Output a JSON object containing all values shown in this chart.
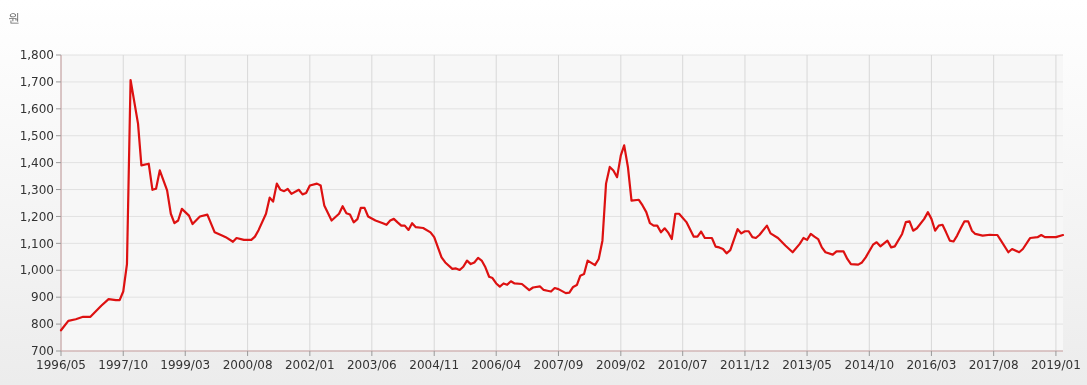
{
  "chart_data": {
    "type": "line",
    "ylabel": "원",
    "x": [
      "1996-05",
      "1996-07",
      "1996-09",
      "1996-11",
      "1997-01",
      "1997-04",
      "1997-06",
      "1997-08",
      "1997-09",
      "1997-10",
      "1997-11",
      "1997-12",
      "1998-02",
      "1998-03",
      "1998-05",
      "1998-06",
      "1998-07",
      "1998-08",
      "1998-10",
      "1998-11",
      "1998-12",
      "1999-01",
      "1999-02",
      "1999-04",
      "1999-05",
      "1999-07",
      "1999-09",
      "1999-11",
      "2000-01",
      "2000-02",
      "2000-04",
      "2000-05",
      "2000-07",
      "2000-09",
      "2000-10",
      "2000-11",
      "2001-01",
      "2001-02",
      "2001-03",
      "2001-04",
      "2001-05",
      "2001-06",
      "2001-07",
      "2001-08",
      "2001-10",
      "2001-11",
      "2001-12",
      "2002-01",
      "2002-03",
      "2002-04",
      "2002-05",
      "2002-07",
      "2002-09",
      "2002-10",
      "2002-11",
      "2002-12",
      "2003-01",
      "2003-02",
      "2003-03",
      "2003-04",
      "2003-05",
      "2003-07",
      "2003-09",
      "2003-10",
      "2003-11",
      "2003-12",
      "2004-01",
      "2004-02",
      "2004-03",
      "2004-04",
      "2004-05",
      "2004-06",
      "2004-08",
      "2004-10",
      "2004-11",
      "2005-01",
      "2005-02",
      "2005-04",
      "2005-05",
      "2005-06",
      "2005-07",
      "2005-08",
      "2005-09",
      "2005-10",
      "2005-11",
      "2005-12",
      "2006-01",
      "2006-02",
      "2006-03",
      "2006-04",
      "2006-05",
      "2006-06",
      "2006-07",
      "2006-08",
      "2006-09",
      "2006-11",
      "2007-01",
      "2007-02",
      "2007-04",
      "2007-05",
      "2007-06",
      "2007-07",
      "2007-08",
      "2007-09",
      "2007-11",
      "2007-12",
      "2008-01",
      "2008-02",
      "2008-03",
      "2008-04",
      "2008-05",
      "2008-07",
      "2008-08",
      "2008-09",
      "2008-10",
      "2008-11",
      "2008-12",
      "2009-01",
      "2009-02",
      "2009-03",
      "2009-04",
      "2009-05",
      "2009-07",
      "2009-08",
      "2009-09",
      "2009-10",
      "2009-11",
      "2009-12",
      "2010-01",
      "2010-02",
      "2010-03",
      "2010-04",
      "2010-05",
      "2010-06",
      "2010-08",
      "2010-10",
      "2010-11",
      "2010-12",
      "2011-01",
      "2011-03",
      "2011-04",
      "2011-05",
      "2011-06",
      "2011-07",
      "2011-08",
      "2011-10",
      "2011-11",
      "2011-12",
      "2012-01",
      "2012-02",
      "2012-03",
      "2012-04",
      "2012-06",
      "2012-07",
      "2012-09",
      "2012-11",
      "2013-01",
      "2013-03",
      "2013-04",
      "2013-05",
      "2013-06",
      "2013-07",
      "2013-08",
      "2013-09",
      "2013-10",
      "2013-12",
      "2014-01",
      "2014-03",
      "2014-04",
      "2014-05",
      "2014-07",
      "2014-08",
      "2014-09",
      "2014-11",
      "2014-12",
      "2015-01",
      "2015-03",
      "2015-04",
      "2015-05",
      "2015-07",
      "2015-08",
      "2015-09",
      "2015-10",
      "2015-11",
      "2016-01",
      "2016-02",
      "2016-03",
      "2016-04",
      "2016-05",
      "2016-06",
      "2016-07",
      "2016-08",
      "2016-09",
      "2016-10",
      "2016-11",
      "2016-12",
      "2017-01",
      "2017-02",
      "2017-03",
      "2017-05",
      "2017-07",
      "2017-08",
      "2017-09",
      "2017-10",
      "2017-12",
      "2018-01",
      "2018-03",
      "2018-04",
      "2018-06",
      "2018-08",
      "2018-09",
      "2018-10",
      "2019-01",
      "2019-03"
    ],
    "series": [
      {
        "color": "#dd1111",
        "values": [
          777,
          812,
          818,
          827,
          827,
          868,
          893,
          889,
          889,
          921,
          1023,
          1707,
          1545,
          1390,
          1396,
          1299,
          1303,
          1371,
          1297,
          1210,
          1175,
          1185,
          1228,
          1203,
          1172,
          1200,
          1207,
          1141,
          1129,
          1123,
          1106,
          1120,
          1113,
          1113,
          1125,
          1150,
          1210,
          1270,
          1255,
          1322,
          1299,
          1294,
          1302,
          1284,
          1299,
          1282,
          1287,
          1315,
          1322,
          1315,
          1241,
          1185,
          1210,
          1238,
          1212,
          1207,
          1178,
          1190,
          1232,
          1232,
          1200,
          1185,
          1175,
          1169,
          1185,
          1191,
          1178,
          1166,
          1166,
          1150,
          1175,
          1160,
          1157,
          1141,
          1123,
          1048,
          1029,
          1005,
          1007,
          1001,
          1013,
          1036,
          1023,
          1029,
          1046,
          1036,
          1011,
          976,
          971,
          951,
          939,
          951,
          946,
          959,
          951,
          949,
          926,
          936,
          940,
          927,
          924,
          921,
          934,
          930,
          915,
          917,
          938,
          945,
          980,
          986,
          1036,
          1019,
          1042,
          1110,
          1322,
          1384,
          1371,
          1346,
          1427,
          1464,
          1384,
          1259,
          1262,
          1241,
          1216,
          1175,
          1166,
          1166,
          1141,
          1156,
          1141,
          1116,
          1210,
          1210,
          1179,
          1125,
          1125,
          1144,
          1120,
          1120,
          1088,
          1085,
          1079,
          1063,
          1075,
          1153,
          1137,
          1145,
          1145,
          1123,
          1120,
          1132,
          1166,
          1137,
          1120,
          1092,
          1067,
          1098,
          1120,
          1113,
          1135,
          1125,
          1116,
          1085,
          1067,
          1058,
          1070,
          1070,
          1042,
          1023,
          1021,
          1029,
          1048,
          1095,
          1104,
          1089,
          1110,
          1085,
          1089,
          1135,
          1179,
          1182,
          1147,
          1156,
          1191,
          1216,
          1191,
          1147,
          1166,
          1169,
          1141,
          1110,
          1107,
          1129,
          1157,
          1182,
          1182,
          1147,
          1135,
          1129,
          1132,
          1131,
          1131,
          1110,
          1067,
          1079,
          1067,
          1079,
          1120,
          1123,
          1131,
          1123,
          1123,
          1131
        ]
      }
    ],
    "xlim": [
      "1996-05",
      "2019-03"
    ],
    "xticks": [
      {
        "value": "1996-05",
        "label": "1996/05"
      },
      {
        "value": "1997-10",
        "label": "1997/10"
      },
      {
        "value": "1999-03",
        "label": "1999/03"
      },
      {
        "value": "2000-08",
        "label": "2000/08"
      },
      {
        "value": "2002-01",
        "label": "2002/01"
      },
      {
        "value": "2003-06",
        "label": "2003/06"
      },
      {
        "value": "2004-11",
        "label": "2004/11"
      },
      {
        "value": "2006-04",
        "label": "2006/04"
      },
      {
        "value": "2007-09",
        "label": "2007/09"
      },
      {
        "value": "2009-02",
        "label": "2009/02"
      },
      {
        "value": "2010-07",
        "label": "2010/07"
      },
      {
        "value": "2011-12",
        "label": "2011/12"
      },
      {
        "value": "2013-05",
        "label": "2013/05"
      },
      {
        "value": "2014-10",
        "label": "2014/10"
      },
      {
        "value": "2016-03",
        "label": "2016/03"
      },
      {
        "value": "2017-08",
        "label": "2017/08"
      },
      {
        "value": "2019-01",
        "label": "2019/01"
      }
    ],
    "ylim": [
      700,
      1800
    ],
    "yticks": [
      {
        "value": 700,
        "label": "700"
      },
      {
        "value": 800,
        "label": "800"
      },
      {
        "value": 900,
        "label": "900"
      },
      {
        "value": 1000,
        "label": "1,000"
      },
      {
        "value": 1100,
        "label": "1,100"
      },
      {
        "value": 1200,
        "label": "1,200"
      },
      {
        "value": 1300,
        "label": "1,300"
      },
      {
        "value": 1400,
        "label": "1,400"
      },
      {
        "value": 1500,
        "label": "1,500"
      },
      {
        "value": 1600,
        "label": "1,600"
      },
      {
        "value": 1700,
        "label": "1,700"
      },
      {
        "value": 1800,
        "label": "1,800"
      }
    ],
    "grid": true,
    "marker": "none",
    "line_style": "solid"
  }
}
